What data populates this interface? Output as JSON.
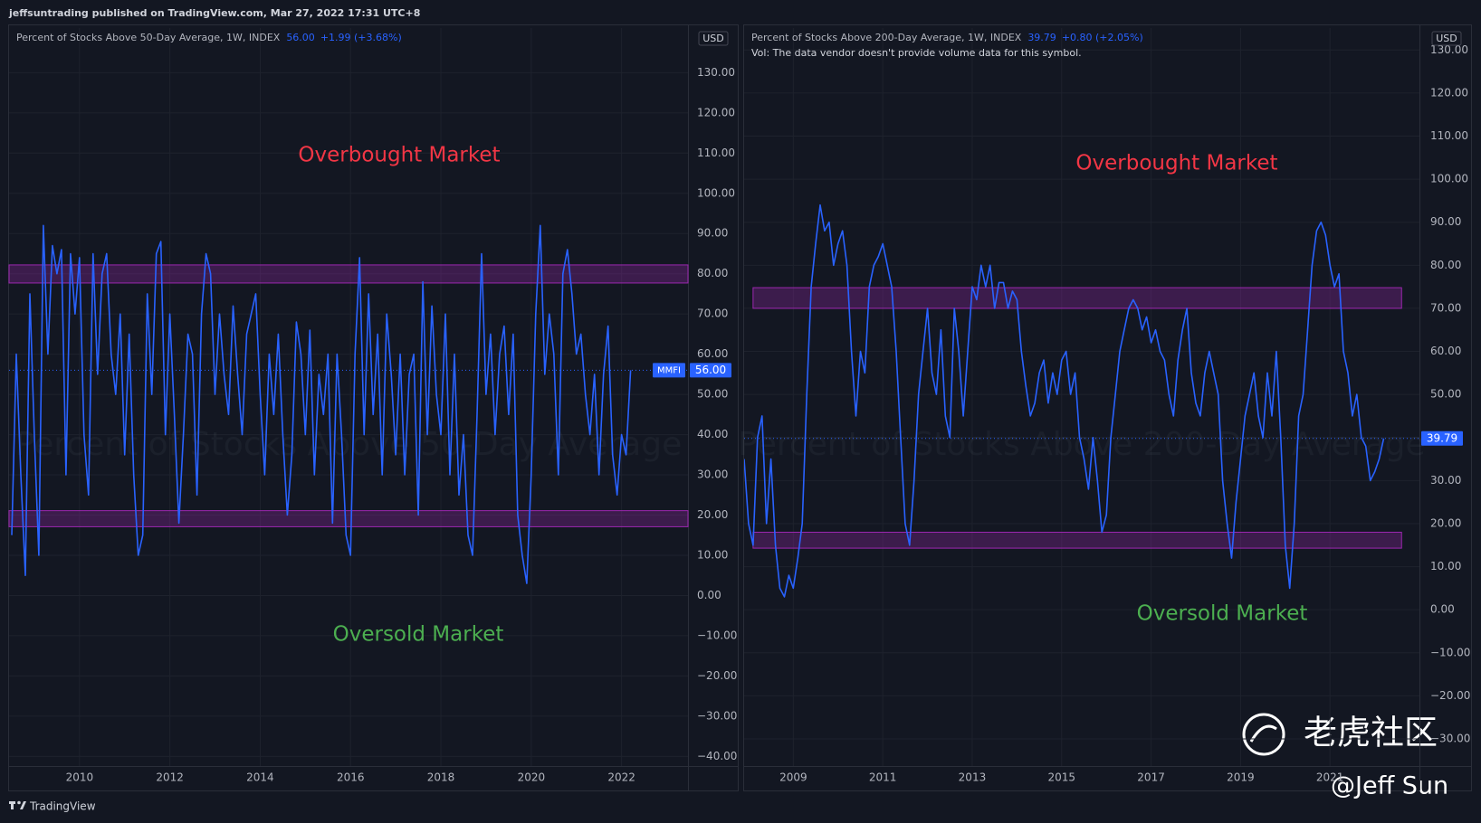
{
  "header": "jeffsuntrading published on TradingView.com, Mar 27, 2022 17:31 UTC+8",
  "footer": "TradingView",
  "watermarks": [
    "老虎社区",
    "@Jeff Sun"
  ],
  "chart_data": [
    {
      "type": "line",
      "title": "Percent of Stocks Above 50-Day Average, 1W, INDEX",
      "change": "+1.99 (+3.68%)",
      "symbol": "MMFI",
      "currency": "USD",
      "watermark": "Percent of Stocks Above 50-Day Average",
      "annotations": [
        "Overbought Market",
        "Oversold Market"
      ],
      "color": "#2962ff",
      "grid": true,
      "last": {
        "value": 56,
        "label": "56.00"
      },
      "zones": [
        {
          "ylim": [
            77.7,
            82.2
          ],
          "xlim": [
            2008.44,
            2023.47
          ],
          "color": "#9c27b0"
        },
        {
          "ylim": [
            17.1,
            21.1
          ],
          "xlim": [
            2008.44,
            2023.47
          ],
          "color": "#9c27b0"
        }
      ],
      "xlim": [
        2008.44,
        2023.47
      ],
      "xticks": [
        2010,
        2012,
        2014,
        2016,
        2018,
        2020,
        2022
      ],
      "ylim": [
        -42.4,
        141.1
      ],
      "yticks": [
        {
          "value": -40,
          "label": "−40.00"
        },
        {
          "value": -30,
          "label": "−30.00"
        },
        {
          "value": -20,
          "label": "−20.00"
        },
        {
          "value": -10,
          "label": "−10.00"
        },
        {
          "value": 0,
          "label": "0.00"
        },
        {
          "value": 10,
          "label": "10.00"
        },
        {
          "value": 20,
          "label": "20.00"
        },
        {
          "value": 30,
          "label": "30.00"
        },
        {
          "value": 40,
          "label": "40.00"
        },
        {
          "value": 50,
          "label": "50.00"
        },
        {
          "value": 60,
          "label": "60.00"
        },
        {
          "value": 70,
          "label": "70.00"
        },
        {
          "value": 80,
          "label": "80.00"
        },
        {
          "value": 90,
          "label": "90.00"
        },
        {
          "value": 100,
          "label": "100.00"
        },
        {
          "value": 110,
          "label": "110.00"
        },
        {
          "value": 120,
          "label": "120.00"
        },
        {
          "value": 130,
          "label": "130.00"
        }
      ],
      "x": [
        2008.5,
        2008.6,
        2008.7,
        2008.8,
        2008.9,
        2009,
        2009.1,
        2009.2,
        2009.3,
        2009.4,
        2009.5,
        2009.6,
        2009.7,
        2009.8,
        2009.9,
        2010,
        2010.1,
        2010.2,
        2010.3,
        2010.4,
        2010.5,
        2010.6,
        2010.7,
        2010.8,
        2010.9,
        2011,
        2011.1,
        2011.2,
        2011.3,
        2011.4,
        2011.5,
        2011.6,
        2011.7,
        2011.8,
        2011.9,
        2012,
        2012.1,
        2012.2,
        2012.3,
        2012.4,
        2012.5,
        2012.6,
        2012.7,
        2012.8,
        2012.9,
        2013,
        2013.1,
        2013.2,
        2013.3,
        2013.4,
        2013.5,
        2013.6,
        2013.7,
        2013.8,
        2013.9,
        2014,
        2014.1,
        2014.2,
        2014.3,
        2014.4,
        2014.5,
        2014.6,
        2014.7,
        2014.8,
        2014.9,
        2015,
        2015.1,
        2015.2,
        2015.3,
        2015.4,
        2015.5,
        2015.6,
        2015.7,
        2015.8,
        2015.9,
        2016,
        2016.1,
        2016.2,
        2016.3,
        2016.4,
        2016.5,
        2016.6,
        2016.7,
        2016.8,
        2016.9,
        2017,
        2017.1,
        2017.2,
        2017.3,
        2017.4,
        2017.5,
        2017.6,
        2017.7,
        2017.8,
        2017.9,
        2018,
        2018.1,
        2018.2,
        2018.3,
        2018.4,
        2018.5,
        2018.6,
        2018.7,
        2018.8,
        2018.9,
        2019,
        2019.1,
        2019.2,
        2019.3,
        2019.4,
        2019.5,
        2019.6,
        2019.7,
        2019.8,
        2019.9,
        2020,
        2020.1,
        2020.2,
        2020.3,
        2020.4,
        2020.5,
        2020.6,
        2020.7,
        2020.8,
        2020.9,
        2021,
        2021.1,
        2021.2,
        2021.3,
        2021.4,
        2021.5,
        2021.6,
        2021.7,
        2021.8,
        2021.9,
        2022,
        2022.1,
        2022.2
      ],
      "values": [
        15,
        60,
        30,
        5,
        75,
        40,
        10,
        92,
        60,
        87,
        80,
        86,
        30,
        85,
        70,
        84,
        40,
        25,
        85,
        55,
        80,
        85,
        60,
        50,
        70,
        35,
        65,
        30,
        10,
        15,
        75,
        50,
        85,
        88,
        40,
        70,
        45,
        18,
        40,
        65,
        60,
        25,
        70,
        85,
        80,
        50,
        70,
        55,
        45,
        72,
        55,
        40,
        65,
        70,
        75,
        50,
        30,
        60,
        45,
        65,
        40,
        20,
        35,
        68,
        60,
        40,
        66,
        30,
        55,
        45,
        60,
        18,
        60,
        40,
        15,
        10,
        60,
        84,
        40,
        75,
        45,
        65,
        30,
        70,
        55,
        35,
        60,
        30,
        55,
        60,
        20,
        78,
        40,
        72,
        50,
        40,
        70,
        30,
        60,
        25,
        40,
        15,
        10,
        45,
        85,
        50,
        65,
        40,
        60,
        67,
        45,
        65,
        20,
        10,
        3,
        30,
        70,
        92,
        55,
        70,
        60,
        30,
        80,
        86,
        75,
        60,
        65,
        50,
        40,
        55,
        30,
        55,
        67,
        35,
        25,
        40,
        35,
        56
      ]
    },
    {
      "type": "line",
      "title": "Percent of Stocks Above 200-Day Average, 1W, INDEX",
      "change": "+0.80 (+2.05%)",
      "note": "Vol: The data vendor doesn't provide volume data for this symbol.",
      "currency": "USD",
      "watermark": "Percent of Stocks Above 200-Day Average",
      "annotations": [
        "Overbought Market",
        "Oversold Market"
      ],
      "color": "#2962ff",
      "grid": true,
      "last": {
        "value": 39.79,
        "label": "39.79"
      },
      "zones": [
        {
          "ylim": [
            70,
            74.8
          ],
          "xlim": [
            2008.1,
            2022.6
          ],
          "color": "#9c27b0"
        },
        {
          "ylim": [
            14.3,
            18
          ],
          "xlim": [
            2008.1,
            2022.6
          ],
          "color": "#9c27b0"
        }
      ],
      "xlim": [
        2007.9,
        2023
      ],
      "xticks": [
        2009,
        2011,
        2013,
        2015,
        2017,
        2019,
        2021
      ],
      "ylim": [
        -36.3,
        135.1
      ],
      "yticks": [
        {
          "value": -30,
          "label": "−30.00"
        },
        {
          "value": -20,
          "label": "−20.00"
        },
        {
          "value": -10,
          "label": "−10.00"
        },
        {
          "value": 0,
          "label": "0.00"
        },
        {
          "value": 10,
          "label": "10.00"
        },
        {
          "value": 20,
          "label": "20.00"
        },
        {
          "value": 30,
          "label": "30.00"
        },
        {
          "value": 40,
          "label": "40.00"
        },
        {
          "value": 50,
          "label": "50.00"
        },
        {
          "value": 60,
          "label": "60.00"
        },
        {
          "value": 70,
          "label": "70.00"
        },
        {
          "value": 80,
          "label": "80.00"
        },
        {
          "value": 90,
          "label": "90.00"
        },
        {
          "value": 100,
          "label": "100.00"
        },
        {
          "value": 110,
          "label": "110.00"
        },
        {
          "value": 120,
          "label": "120.00"
        },
        {
          "value": 130,
          "label": "130.00"
        }
      ],
      "x": [
        2007.9,
        2008,
        2008.1,
        2008.2,
        2008.3,
        2008.4,
        2008.5,
        2008.6,
        2008.7,
        2008.8,
        2008.9,
        2009,
        2009.1,
        2009.2,
        2009.3,
        2009.4,
        2009.5,
        2009.6,
        2009.7,
        2009.8,
        2009.9,
        2010,
        2010.1,
        2010.2,
        2010.3,
        2010.4,
        2010.5,
        2010.6,
        2010.7,
        2010.8,
        2010.9,
        2011,
        2011.1,
        2011.2,
        2011.3,
        2011.4,
        2011.5,
        2011.6,
        2011.7,
        2011.8,
        2011.9,
        2012,
        2012.1,
        2012.2,
        2012.3,
        2012.4,
        2012.5,
        2012.6,
        2012.7,
        2012.8,
        2012.9,
        2013,
        2013.1,
        2013.2,
        2013.3,
        2013.4,
        2013.5,
        2013.6,
        2013.7,
        2013.8,
        2013.9,
        2014,
        2014.1,
        2014.2,
        2014.3,
        2014.4,
        2014.5,
        2014.6,
        2014.7,
        2014.8,
        2014.9,
        2015,
        2015.1,
        2015.2,
        2015.3,
        2015.4,
        2015.5,
        2015.6,
        2015.7,
        2015.8,
        2015.9,
        2016,
        2016.1,
        2016.2,
        2016.3,
        2016.4,
        2016.5,
        2016.6,
        2016.7,
        2016.8,
        2016.9,
        2017,
        2017.1,
        2017.2,
        2017.3,
        2017.4,
        2017.5,
        2017.6,
        2017.7,
        2017.8,
        2017.9,
        2018,
        2018.1,
        2018.2,
        2018.3,
        2018.4,
        2018.5,
        2018.6,
        2018.7,
        2018.8,
        2018.9,
        2019,
        2019.1,
        2019.2,
        2019.3,
        2019.4,
        2019.5,
        2019.6,
        2019.7,
        2019.8,
        2019.9,
        2020,
        2020.1,
        2020.2,
        2020.3,
        2020.4,
        2020.5,
        2020.6,
        2020.7,
        2020.8,
        2020.9,
        2021,
        2021.1,
        2021.2,
        2021.3,
        2021.4,
        2021.5,
        2021.6,
        2021.7,
        2021.8,
        2021.9,
        2022,
        2022.1,
        2022.2
      ],
      "values": [
        35,
        20,
        15,
        40,
        45,
        20,
        35,
        15,
        5,
        3,
        8,
        5,
        12,
        20,
        50,
        75,
        85,
        94,
        88,
        90,
        80,
        85,
        88,
        80,
        60,
        45,
        60,
        55,
        75,
        80,
        82,
        85,
        80,
        75,
        60,
        40,
        20,
        15,
        30,
        50,
        60,
        70,
        55,
        50,
        65,
        45,
        40,
        70,
        60,
        45,
        60,
        75,
        72,
        80,
        75,
        80,
        70,
        76,
        76,
        70,
        74,
        72,
        60,
        52,
        45,
        48,
        55,
        58,
        48,
        55,
        50,
        58,
        60,
        50,
        55,
        40,
        35,
        28,
        40,
        30,
        18,
        22,
        40,
        50,
        60,
        65,
        70,
        72,
        70,
        65,
        68,
        62,
        65,
        60,
        58,
        50,
        45,
        58,
        65,
        70,
        55,
        48,
        45,
        55,
        60,
        55,
        50,
        30,
        20,
        12,
        25,
        35,
        45,
        50,
        55,
        45,
        40,
        55,
        45,
        60,
        40,
        15,
        5,
        20,
        45,
        50,
        65,
        80,
        88,
        90,
        87,
        80,
        75,
        78,
        60,
        55,
        45,
        50,
        40,
        38,
        30,
        32,
        35,
        39.79
      ]
    }
  ]
}
